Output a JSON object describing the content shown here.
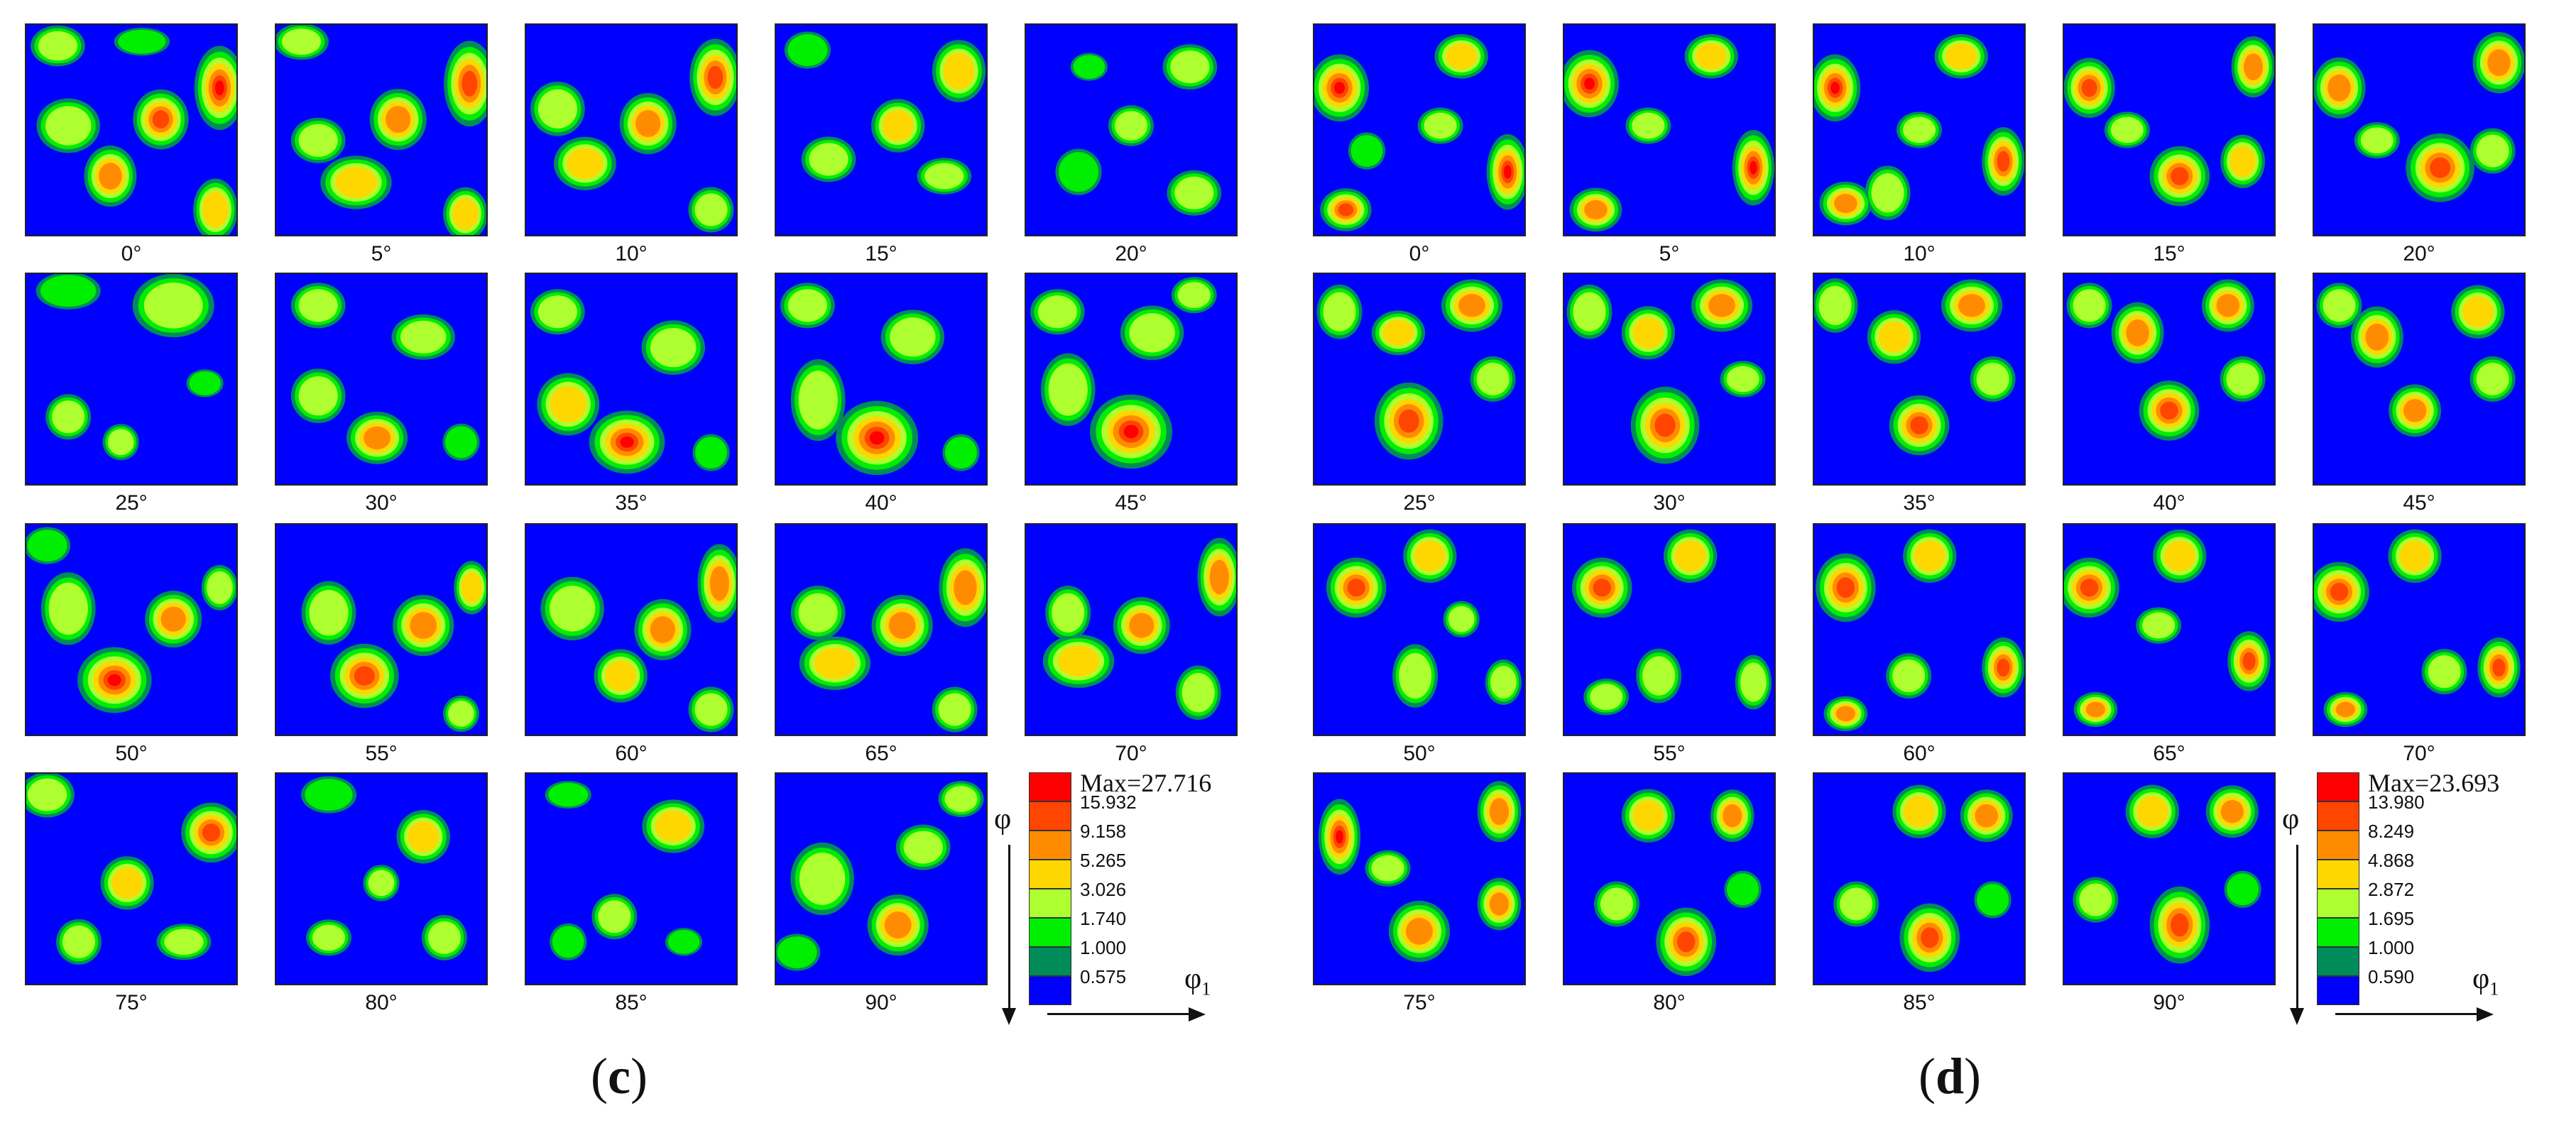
{
  "panels": [
    {
      "id": "c",
      "caption_open": "(",
      "caption_letter": "c",
      "caption_close": ")",
      "angles": [
        "0°",
        "5°",
        "10°",
        "15°",
        "20°",
        "25°",
        "30°",
        "35°",
        "40°",
        "45°",
        "50°",
        "55°",
        "60°",
        "65°",
        "70°",
        "75°",
        "80°",
        "85°",
        "90°"
      ],
      "legend": {
        "max_label": "Max=27.716",
        "levels": [
          "15.932",
          "9.158",
          "5.265",
          "3.026",
          "1.740",
          "1.000",
          "0.575"
        ]
      },
      "axis_phi": "φ",
      "axis_phi1": "φ",
      "axis_phi1_sub": "1"
    },
    {
      "id": "d",
      "caption_open": "(",
      "caption_letter": "d",
      "caption_close": ")",
      "angles": [
        "0°",
        "5°",
        "10°",
        "15°",
        "20°",
        "25°",
        "30°",
        "35°",
        "40°",
        "45°",
        "50°",
        "55°",
        "60°",
        "65°",
        "70°",
        "75°",
        "80°",
        "85°",
        "90°"
      ],
      "legend": {
        "max_label": "Max=23.693",
        "levels": [
          "13.980",
          "8.249",
          "4.868",
          "2.872",
          "1.695",
          "1.000",
          "0.590"
        ]
      },
      "axis_phi": "φ",
      "axis_phi1": "φ",
      "axis_phi1_sub": "1"
    }
  ],
  "colors": {
    "background": "#0000ff",
    "levels": [
      "#ff0000",
      "#ff4500",
      "#ff8c00",
      "#ffd700",
      "#adff2f",
      "#00ee00",
      "#008b5a"
    ],
    "lowest": "#0000ff"
  }
}
